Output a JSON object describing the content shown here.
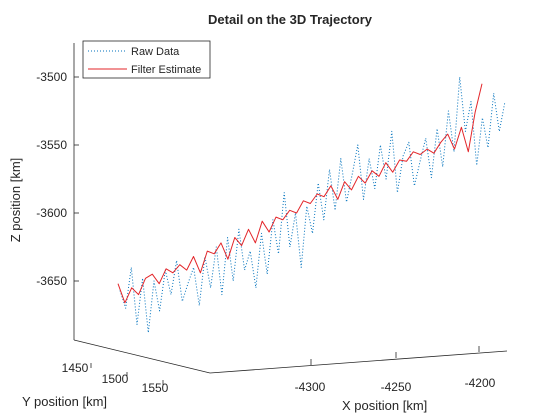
{
  "chart_data": {
    "type": "line",
    "title": "Detail on the 3D Trajectory",
    "xlabel": "X position [km]",
    "ylabel": "Y position [km]",
    "zlabel": "Z position [km]",
    "x_ticks": [
      "-4300",
      "-4250",
      "-4200"
    ],
    "y_ticks": [
      "1450",
      "1500",
      "1550"
    ],
    "z_ticks": [
      "-3500",
      "-3550",
      "-3600",
      "-3650"
    ],
    "legend_position": "top-left",
    "grid": false,
    "view": "3d",
    "series": [
      {
        "name": "Raw Data",
        "color": "#0072BD",
        "style": "dotted",
        "projected_z": [
          -3657,
          -3670,
          -3640,
          -3682,
          -3648,
          -3688,
          -3650,
          -3672,
          -3642,
          -3660,
          -3635,
          -3665,
          -3652,
          -3640,
          -3668,
          -3632,
          -3655,
          -3625,
          -3660,
          -3618,
          -3650,
          -3612,
          -3642,
          -3628,
          -3655,
          -3615,
          -3645,
          -3605,
          -3630,
          -3585,
          -3625,
          -3600,
          -3640,
          -3595,
          -3615,
          -3578,
          -3605,
          -3568,
          -3598,
          -3560,
          -3592,
          -3572,
          -3550,
          -3590,
          -3560,
          -3582,
          -3550,
          -3575,
          -3540,
          -3585,
          -3558,
          -3548,
          -3580,
          -3562,
          -3545,
          -3574,
          -3538,
          -3566,
          -3525,
          -3555,
          -3500,
          -3540,
          -3518,
          -3565,
          -3530,
          -3552,
          -3512,
          -3540,
          -3518
        ]
      },
      {
        "name": "Filter Estimate",
        "color": "#D95319",
        "style": "solid",
        "projected_z": [
          -3652,
          -3666,
          -3655,
          -3660,
          -3648,
          -3645,
          -3652,
          -3641,
          -3644,
          -3638,
          -3642,
          -3632,
          -3644,
          -3628,
          -3630,
          -3622,
          -3634,
          -3618,
          -3624,
          -3612,
          -3622,
          -3606,
          -3614,
          -3603,
          -3605,
          -3598,
          -3600,
          -3591,
          -3593,
          -3586,
          -3588,
          -3580,
          -3590,
          -3577,
          -3583,
          -3573,
          -3578,
          -3569,
          -3573,
          -3563,
          -3570,
          -3561,
          -3562,
          -3555,
          -3557,
          -3553,
          -3556,
          -3548,
          -3542,
          -3553,
          -3537,
          -3555,
          -3526,
          -3505
        ]
      }
    ]
  }
}
